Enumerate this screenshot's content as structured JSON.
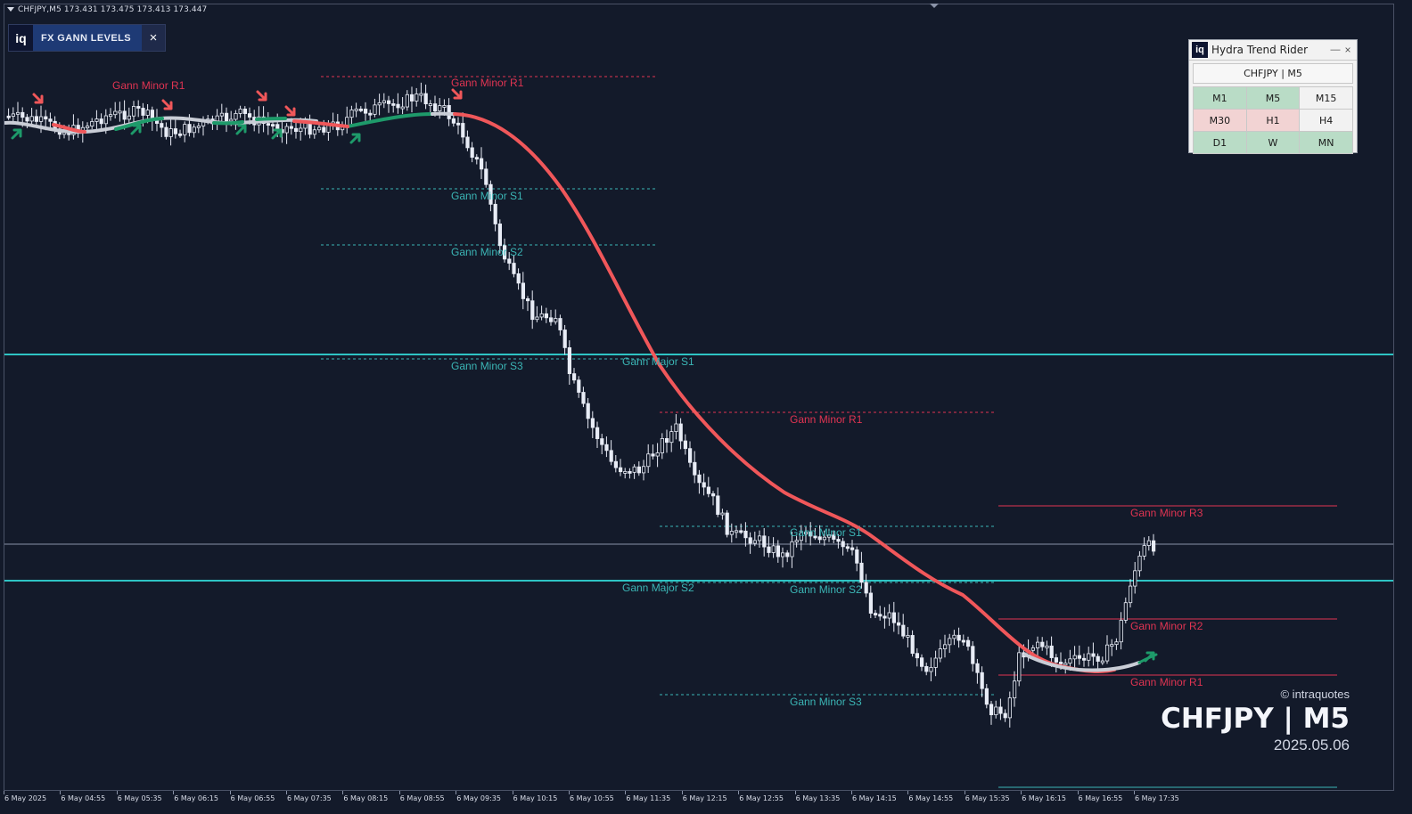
{
  "header": {
    "symbol_info": "CHFJPY,M5  173.431 173.475 173.413 173.447"
  },
  "gann_tab": {
    "logo": "iq",
    "title": "FX GANN LEVELS",
    "close": "×"
  },
  "hydra_panel": {
    "logo": "iq",
    "title": "Hydra Trend Rider",
    "minimize": "—",
    "close": "×",
    "symbol": "CHFJPY   |   M5",
    "timeframes": [
      {
        "label": "M1",
        "color": "#b9dcc6"
      },
      {
        "label": "M5",
        "color": "#b9dcc6"
      },
      {
        "label": "M15",
        "color": "#f2f2f2"
      },
      {
        "label": "M30",
        "color": "#f2d3d3"
      },
      {
        "label": "H1",
        "color": "#f2d3d3"
      },
      {
        "label": "H4",
        "color": "#f2f2f2"
      },
      {
        "label": "D1",
        "color": "#b9dcc6"
      },
      {
        "label": "W",
        "color": "#b9dcc6"
      },
      {
        "label": "MN",
        "color": "#b9dcc6"
      }
    ]
  },
  "brand": {
    "source": "© intraquotes",
    "pair": "CHFJPY | M5",
    "date": "2025.05.06"
  },
  "colors": {
    "background": "#131a2a",
    "major_level": "#2ec4c4",
    "resistance": "#e03452",
    "support": "#3bb5b5",
    "trend_bear": "#f0575a",
    "trend_bull": "#1e9a6a",
    "trend_neutral": "#c9cdd6",
    "candle": "#e8ecf6"
  },
  "levels": {
    "major": [
      {
        "label": "Gann Major S1"
      },
      {
        "label": "Gann Major S2"
      }
    ],
    "minor_left_top": "Gann Minor R1",
    "minor_session1": [
      "Gann Minor R1",
      "Gann Minor S1",
      "Gann Minor S2",
      "Gann Minor S3"
    ],
    "minor_session2": [
      "Gann Minor R1",
      "Gann Minor S1",
      "Gann Minor S2",
      "Gann Minor S3"
    ],
    "minor_session3": [
      "Gann Minor R3",
      "Gann Minor R2",
      "Gann Minor R1"
    ]
  },
  "time_axis": [
    "6 May 2025",
    "6 May 04:55",
    "6 May 05:35",
    "6 May 06:15",
    "6 May 06:55",
    "6 May 07:35",
    "6 May 08:15",
    "6 May 08:55",
    "6 May 09:35",
    "6 May 10:15",
    "6 May 10:55",
    "6 May 11:35",
    "6 May 12:15",
    "6 May 12:55",
    "6 May 13:35",
    "6 May 14:15",
    "6 May 14:55",
    "6 May 15:35",
    "6 May 16:15",
    "6 May 16:55",
    "6 May 17:35"
  ]
}
